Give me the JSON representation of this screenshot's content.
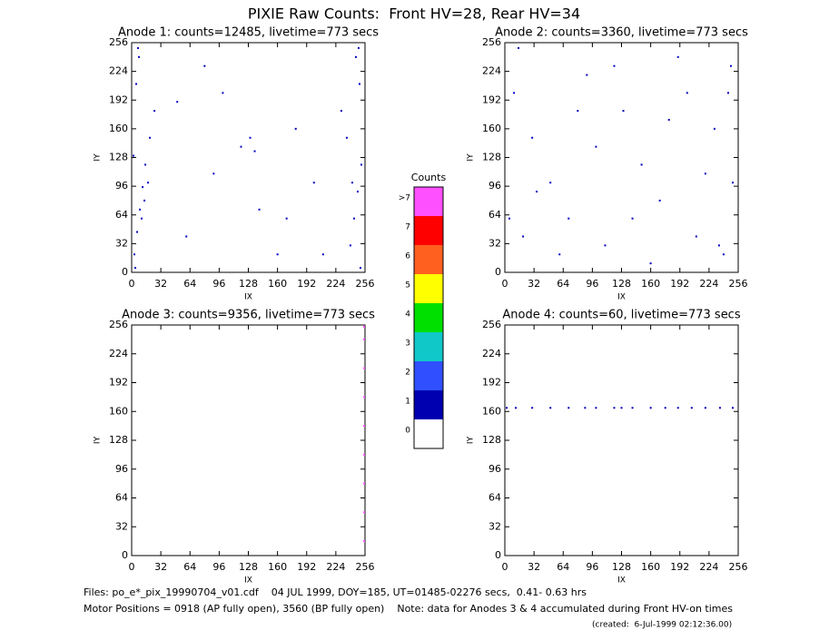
{
  "title": "PIXIE Raw Counts:  Front HV=28, Rear HV=34",
  "footer": [
    "Files: po_e*_pix_19990704_v01.cdf    04 JUL 1999, DOY=185, UT=01485-02276 secs,  0.41- 0.63 hrs",
    "Motor Positions = 0918 (AP fully open), 3560 (BP fully open)    Note: data for Anodes 3 & 4 accumulated during Front HV-on times",
    "(created:  6-Jul-1999 02:12:36.00)"
  ],
  "chart_data": [
    {
      "type": "scatter",
      "title": "Anode 1: counts=12485, livetime=773 secs",
      "x_label": "IX",
      "y_label": "IY",
      "xlim": [
        0,
        256
      ],
      "ylim": [
        0,
        256
      ],
      "xticks": [
        0,
        32,
        64,
        96,
        128,
        160,
        192,
        224,
        256
      ],
      "yticks": [
        0,
        32,
        64,
        96,
        128,
        160,
        192,
        224,
        256
      ],
      "series": [
        {
          "color": "#0000c0",
          "x": [
            3,
            6,
            9,
            12,
            15,
            20,
            25,
            5,
            8,
            2,
            11,
            18,
            240,
            244,
            248,
            252,
            236,
            230,
            250,
            246,
            60,
            100,
            140,
            180,
            200,
            120,
            80,
            160,
            130,
            135,
            4,
            7,
            251,
            249,
            14,
            242,
            90,
            170,
            210,
            50
          ],
          "y": [
            20,
            45,
            70,
            95,
            120,
            150,
            180,
            210,
            240,
            130,
            60,
            100,
            30,
            60,
            90,
            120,
            150,
            180,
            210,
            240,
            40,
            200,
            70,
            160,
            100,
            140,
            230,
            20,
            150,
            135,
            5,
            250,
            5,
            250,
            80,
            100,
            110,
            60,
            20,
            190
          ]
        }
      ]
    },
    {
      "type": "scatter",
      "title": "Anode 2: counts=3360, livetime=773 secs",
      "x_label": "IX",
      "y_label": "IY",
      "xlim": [
        0,
        256
      ],
      "ylim": [
        0,
        256
      ],
      "xticks": [
        0,
        32,
        64,
        96,
        128,
        160,
        192,
        224,
        256
      ],
      "yticks": [
        0,
        32,
        64,
        96,
        128,
        160,
        192,
        224,
        256
      ],
      "series": [
        {
          "color": "#0000c0",
          "x": [
            10,
            30,
            50,
            70,
            90,
            110,
            130,
            150,
            170,
            190,
            210,
            230,
            245,
            250,
            240,
            20,
            60,
            100,
            140,
            180,
            220,
            248,
            5,
            15,
            35,
            80,
            120,
            160,
            200,
            235
          ],
          "y": [
            200,
            150,
            100,
            60,
            220,
            30,
            180,
            120,
            80,
            240,
            40,
            160,
            200,
            100,
            20,
            40,
            20,
            140,
            60,
            170,
            110,
            230,
            60,
            250,
            90,
            180,
            230,
            10,
            200,
            30
          ]
        }
      ]
    },
    {
      "type": "scatter",
      "title": "Anode 3: counts=9356, livetime=773 secs",
      "x_label": "IX",
      "y_label": "IY",
      "xlim": [
        0,
        256
      ],
      "ylim": [
        0,
        256
      ],
      "xticks": [
        0,
        32,
        64,
        96,
        128,
        160,
        192,
        224,
        256
      ],
      "yticks": [
        0,
        32,
        64,
        96,
        128,
        160,
        192,
        224,
        256
      ],
      "series": [
        {
          "color": "#ff50ff",
          "x": [
            255,
            255,
            255,
            255,
            255,
            255,
            255,
            255,
            255
          ],
          "y": [
            16,
            48,
            80,
            112,
            144,
            176,
            208,
            240,
            254
          ]
        }
      ]
    },
    {
      "type": "scatter",
      "title": "Anode 4: counts=60, livetime=773 secs",
      "x_label": "IX",
      "y_label": "IY",
      "xlim": [
        0,
        256
      ],
      "ylim": [
        0,
        256
      ],
      "xticks": [
        0,
        32,
        64,
        96,
        128,
        160,
        192,
        224,
        256
      ],
      "yticks": [
        0,
        32,
        64,
        96,
        128,
        160,
        192,
        224,
        256
      ],
      "series": [
        {
          "color": "#0000c0",
          "x": [
            2,
            12,
            30,
            50,
            70,
            88,
            100,
            120,
            128,
            140,
            160,
            176,
            190,
            205,
            220,
            236,
            250
          ],
          "y": [
            164,
            164,
            164,
            164,
            164,
            164,
            164,
            164,
            164,
            164,
            164,
            164,
            164,
            164,
            164,
            164,
            164
          ]
        }
      ]
    },
    {
      "type": "colorbar",
      "title": "Counts",
      "categories": [
        "0",
        "1",
        "2",
        "3",
        "4",
        "5",
        "6",
        "7",
        ">7"
      ],
      "colors": [
        "#ffffff",
        "#0000b0",
        "#3050ff",
        "#10c8c8",
        "#00e000",
        "#ffff00",
        "#ff6020",
        "#ff0000",
        "#ff50ff"
      ]
    }
  ]
}
